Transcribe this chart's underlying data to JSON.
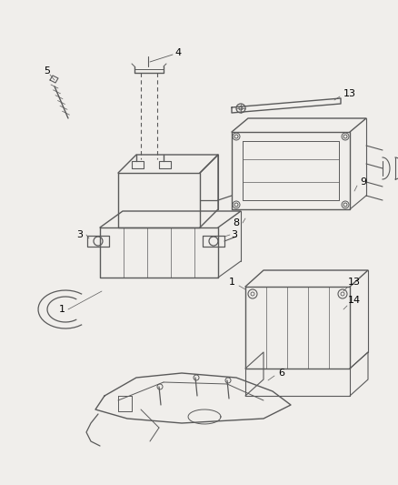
{
  "bg_color": "#f0eeeb",
  "line_color": "#5a5a5a",
  "label_color": "#000000",
  "fig_width": 4.38,
  "fig_height": 5.33,
  "dpi": 100
}
